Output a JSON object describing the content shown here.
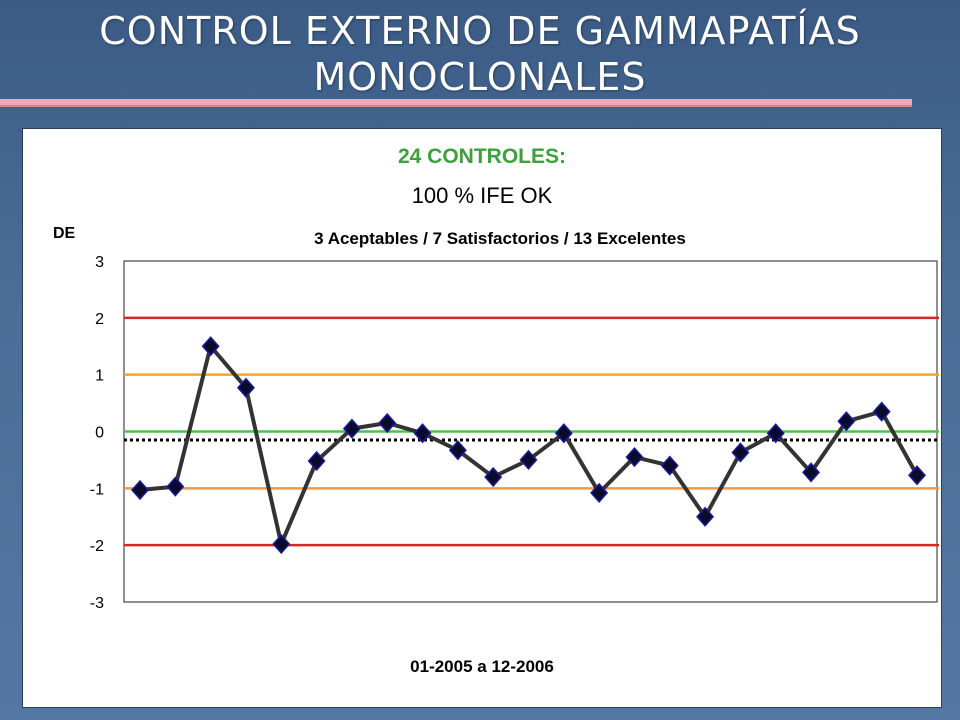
{
  "slide": {
    "title_line1": "CONTROL EXTERNO DE GAMMAPATÍAS",
    "title_line2": "MONOCLONALES"
  },
  "chart_data": {
    "type": "line",
    "title": "24 CONTROLES:",
    "subtitle": "100 %   IFE   OK",
    "annotation": "3 Aceptables   /   7 Satisfactorios   /   13 Excelentes",
    "xlabel": "01-2005    a    12-2006",
    "ylabel": "DE",
    "ylim": [
      -3,
      3
    ],
    "yticks": [
      3,
      2,
      1,
      0,
      -1,
      -2,
      -3
    ],
    "y_tick_labels": [
      "3",
      "2",
      "1",
      "0",
      "-1",
      "-2",
      "-3"
    ],
    "grid": false,
    "legend": "none",
    "series": [
      {
        "values": [
          -1.03,
          -0.97,
          1.5,
          0.77,
          -1.98,
          -0.52,
          0.05,
          0.15,
          -0.03,
          -0.33,
          -0.8,
          -0.5,
          -0.03,
          -1.08,
          -0.45,
          -0.6,
          -1.5,
          -0.37,
          -0.03,
          -0.72,
          0.18,
          0.35,
          -0.77
        ],
        "color": "#333333",
        "marker": "diamond",
        "marker_color": "#0a0a2a",
        "marker_edge": "#1a1aa0"
      }
    ],
    "reference_lines": [
      {
        "y": 2,
        "color": "#d62728"
      },
      {
        "y": 1,
        "color": "#f5a623"
      },
      {
        "y": 0,
        "color": "#4cc14c"
      },
      {
        "y": -1,
        "color": "#ef9a4a"
      },
      {
        "y": -2,
        "color": "#d62728"
      },
      {
        "y": -0.15,
        "color": "#000000",
        "style": "dotted"
      }
    ]
  }
}
